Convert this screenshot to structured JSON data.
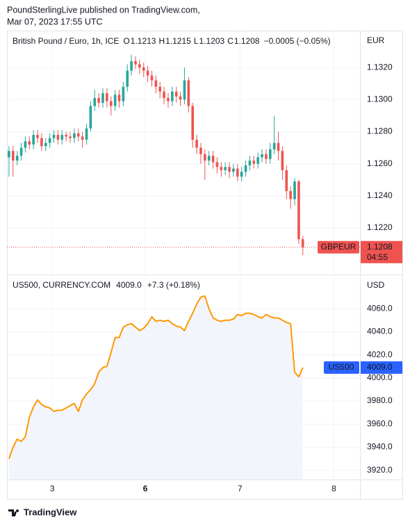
{
  "header": {
    "line1": "PoundSterlingLive published on TradingView.com,",
    "line2": "Mar 07, 2023 17:55 UTC"
  },
  "footer": "TradingView",
  "chart_data": [
    {
      "type": "candlestick",
      "title": "British Pound / Euro, 1h, ICE",
      "ohlc_labels": [
        "O",
        "H",
        "L",
        "C"
      ],
      "change": "−0.0005 (−0.05%)",
      "axis_unit": "EUR",
      "symbol": "GBPEUR",
      "countdown": "04:55",
      "up_color": "#26a69a",
      "down_color": "#ef5350",
      "grid": true,
      "xlim": [
        -0.5,
        86
      ],
      "ylim": [
        1.1191,
        1.1343
      ],
      "yticks": [
        {
          "value": 1.122,
          "label": "1.1220"
        },
        {
          "value": 1.124,
          "label": "1.1240"
        },
        {
          "value": 1.126,
          "label": "1.1260"
        },
        {
          "value": 1.128,
          "label": "1.1280"
        },
        {
          "value": 1.13,
          "label": "1.1300"
        },
        {
          "value": 1.132,
          "label": "1.1320"
        }
      ],
      "x": [
        0,
        1,
        2,
        3,
        4,
        5,
        6,
        7,
        8,
        9,
        10,
        11,
        12,
        13,
        14,
        15,
        16,
        17,
        18,
        19,
        20,
        21,
        22,
        23,
        24,
        25,
        26,
        27,
        28,
        29,
        30,
        31,
        32,
        33,
        34,
        35,
        36,
        37,
        38,
        39,
        40,
        41,
        42,
        43,
        44,
        45,
        46,
        47,
        48,
        49,
        50,
        51,
        52,
        53,
        54,
        55,
        56,
        57,
        58,
        59,
        60,
        61,
        62,
        63,
        64,
        65,
        66,
        67,
        68,
        69,
        70,
        71,
        72
      ],
      "open": [
        1.1264,
        1.1268,
        1.1262,
        1.1265,
        1.127,
        1.1274,
        1.1272,
        1.1278,
        1.1276,
        1.1271,
        1.1273,
        1.1276,
        1.1278,
        1.1275,
        1.1278,
        1.1277,
        1.1276,
        1.1279,
        1.1277,
        1.1275,
        1.1282,
        1.1296,
        1.1301,
        1.1298,
        1.1304,
        1.1299,
        1.1296,
        1.1303,
        1.1299,
        1.1308,
        1.1318,
        1.1324,
        1.1322,
        1.132,
        1.1318,
        1.1315,
        1.1312,
        1.1308,
        1.1305,
        1.1301,
        1.1299,
        1.1305,
        1.1302,
        1.13,
        1.1312,
        1.1296,
        1.1275,
        1.127,
        1.1266,
        1.1262,
        1.1265,
        1.1261,
        1.1258,
        1.1256,
        1.1258,
        1.1255,
        1.1257,
        1.1252,
        1.1255,
        1.1259,
        1.1262,
        1.126,
        1.1264,
        1.1266,
        1.1263,
        1.1269,
        1.1273,
        1.1268,
        1.1256,
        1.1243,
        1.1238,
        1.1249,
        1.1213
      ],
      "high": [
        1.1271,
        1.1271,
        1.1268,
        1.1273,
        1.1277,
        1.1277,
        1.1281,
        1.1281,
        1.1279,
        1.1276,
        1.1279,
        1.1281,
        1.1281,
        1.1281,
        1.128,
        1.128,
        1.1282,
        1.1282,
        1.128,
        1.1285,
        1.1299,
        1.1306,
        1.1304,
        1.1307,
        1.1307,
        1.1302,
        1.1306,
        1.1306,
        1.1311,
        1.1322,
        1.1328,
        1.1327,
        1.1325,
        1.1323,
        1.1321,
        1.1318,
        1.1315,
        1.1311,
        1.1308,
        1.1304,
        1.1308,
        1.1308,
        1.1305,
        1.132,
        1.1314,
        1.1298,
        1.1278,
        1.1273,
        1.1269,
        1.1268,
        1.1268,
        1.1264,
        1.1261,
        1.1261,
        1.1261,
        1.126,
        1.126,
        1.1258,
        1.1262,
        1.1265,
        1.1265,
        1.1267,
        1.1269,
        1.1269,
        1.1273,
        1.129,
        1.128,
        1.1271,
        1.1259,
        1.1246,
        1.1251,
        1.125,
        1.1215
      ],
      "low": [
        1.1252,
        1.1252,
        1.1259,
        1.1262,
        1.1267,
        1.1269,
        1.1269,
        1.1273,
        1.1268,
        1.1268,
        1.127,
        1.1273,
        1.1272,
        1.1272,
        1.1274,
        1.1273,
        1.1273,
        1.1274,
        1.127,
        1.1272,
        1.128,
        1.1293,
        1.1295,
        1.1295,
        1.1295,
        1.129,
        1.1293,
        1.1295,
        1.1296,
        1.1305,
        1.1315,
        1.1319,
        1.1316,
        1.1314,
        1.1311,
        1.1308,
        1.1304,
        1.1301,
        1.1297,
        1.1295,
        1.1296,
        1.1298,
        1.1296,
        1.1297,
        1.1292,
        1.127,
        1.1266,
        1.126,
        1.125,
        1.1259,
        1.1257,
        1.1254,
        1.1252,
        1.1253,
        1.1251,
        1.1252,
        1.1249,
        1.1249,
        1.1252,
        1.1256,
        1.1257,
        1.1257,
        1.1261,
        1.126,
        1.126,
        1.1266,
        1.1262,
        1.125,
        1.1238,
        1.1232,
        1.1234,
        1.121,
        1.1203
      ],
      "close": [
        1.1268,
        1.1262,
        1.1265,
        1.127,
        1.1274,
        1.1272,
        1.1278,
        1.1276,
        1.1271,
        1.1273,
        1.1276,
        1.1278,
        1.1275,
        1.1278,
        1.1277,
        1.1276,
        1.1279,
        1.1277,
        1.1275,
        1.1282,
        1.1296,
        1.1301,
        1.1298,
        1.1304,
        1.1299,
        1.1296,
        1.1303,
        1.1299,
        1.1308,
        1.1318,
        1.1324,
        1.1322,
        1.132,
        1.1318,
        1.1315,
        1.1312,
        1.1308,
        1.1305,
        1.1301,
        1.1299,
        1.1305,
        1.1302,
        1.13,
        1.1312,
        1.1296,
        1.1275,
        1.127,
        1.1266,
        1.1262,
        1.1265,
        1.1261,
        1.1258,
        1.1256,
        1.1258,
        1.1255,
        1.1257,
        1.1252,
        1.1255,
        1.1259,
        1.1262,
        1.126,
        1.1264,
        1.1266,
        1.1263,
        1.1269,
        1.1273,
        1.1268,
        1.1256,
        1.1243,
        1.1238,
        1.1249,
        1.1213,
        1.1208
      ]
    },
    {
      "type": "area",
      "title": "US500, CURRENCY.COM",
      "last_label": "4009.0",
      "change": "+7.3 (+0.18%)",
      "axis_unit": "USD",
      "symbol": "US500",
      "color": "#ff9800",
      "fill": "#f3f5fd",
      "tag_color": "#2962ff",
      "grid": true,
      "xlim": [
        -0.5,
        86
      ],
      "xticks": [
        {
          "value": 10.6,
          "label": "3"
        },
        {
          "value": 33.4,
          "label": "6"
        },
        {
          "value": 56.6,
          "label": "7"
        },
        {
          "value": 79.6,
          "label": "8"
        }
      ],
      "ylim": [
        3912,
        4089
      ],
      "yticks": [
        {
          "value": 3920,
          "label": "3920.0"
        },
        {
          "value": 3940,
          "label": "3940.0"
        },
        {
          "value": 3960,
          "label": "3960.0"
        },
        {
          "value": 3980,
          "label": "3980.0"
        },
        {
          "value": 4000,
          "label": "4000.0"
        },
        {
          "value": 4020,
          "label": "4020.0"
        },
        {
          "value": 4040,
          "label": "4040.0"
        },
        {
          "value": 4060,
          "label": "4060.0"
        }
      ],
      "x": [
        0,
        1,
        2,
        3,
        4,
        5,
        6,
        7,
        8,
        9,
        10,
        11,
        12,
        13,
        14,
        15,
        16,
        17,
        18,
        19,
        20,
        21,
        22,
        23,
        24,
        25,
        26,
        27,
        28,
        29,
        30,
        31,
        32,
        33,
        34,
        35,
        36,
        37,
        38,
        39,
        40,
        41,
        42,
        43,
        44,
        45,
        46,
        47,
        48,
        49,
        50,
        51,
        52,
        53,
        54,
        55,
        56,
        57,
        58,
        59,
        60,
        61,
        62,
        63,
        64,
        65,
        66,
        67,
        68,
        69,
        70,
        71,
        72
      ],
      "values": [
        3930,
        3940,
        3947,
        3945,
        3949,
        3966,
        3975,
        3981,
        3977,
        3975,
        3974,
        3971,
        3972,
        3972,
        3974,
        3976,
        3978,
        3971,
        3981,
        3986,
        3990,
        3995,
        4005,
        4009,
        4010,
        4022,
        4035,
        4035,
        4044,
        4046,
        4047,
        4044,
        4041,
        4043,
        4047,
        4053,
        4049,
        4050,
        4049,
        4050,
        4047,
        4045,
        4044,
        4041,
        4049,
        4056,
        4064,
        4070,
        4071,
        4060,
        4052,
        4050,
        4049,
        4050,
        4050,
        4051,
        4055,
        4054,
        4056,
        4056,
        4055,
        4053,
        4052,
        4055,
        4053,
        4052,
        4052,
        4050,
        4048,
        4047,
        4005,
        4001,
        4009
      ]
    }
  ]
}
